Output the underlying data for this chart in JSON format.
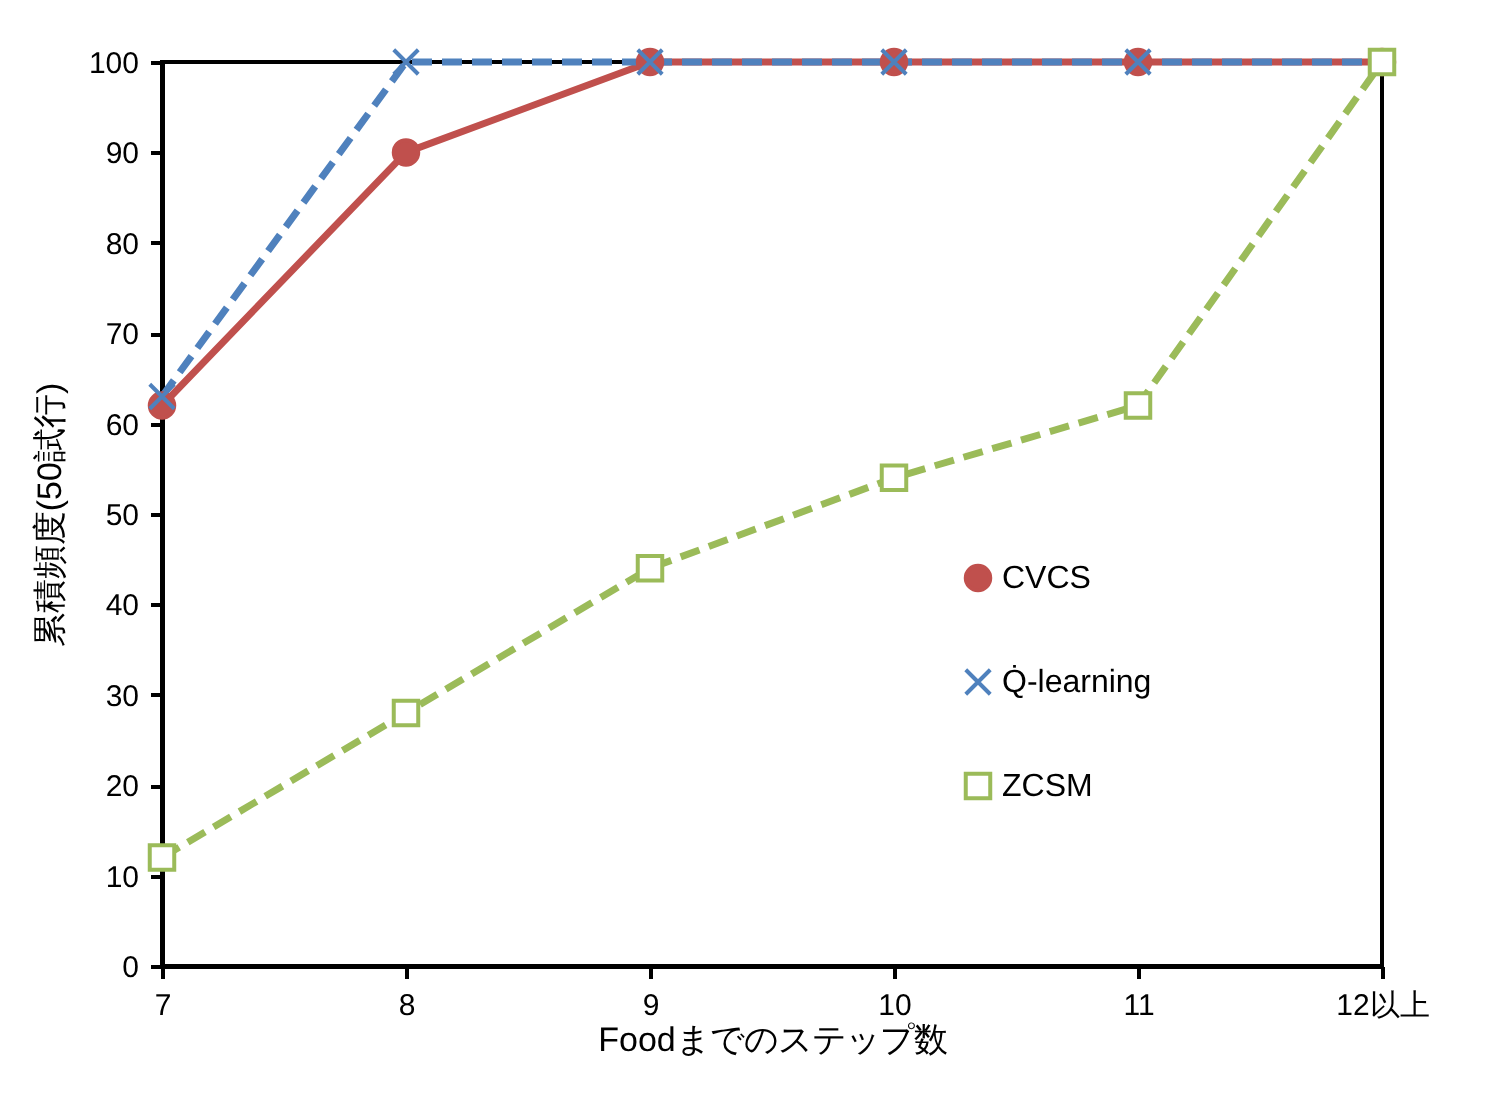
{
  "chart_data": {
    "type": "line",
    "xlabel": "Foodまでのステップ数",
    "ylabel": "累積頻度(50試行)",
    "categories": [
      "7",
      "8",
      "9",
      "10",
      "11",
      "12以上"
    ],
    "ylim": [
      0,
      100
    ],
    "yticks": [
      0,
      10,
      20,
      30,
      40,
      50,
      60,
      70,
      80,
      90,
      100
    ],
    "grid": false,
    "legend": "right",
    "series": [
      {
        "name": "CVCS",
        "color": "#c0504d",
        "marker": "circle",
        "line_style": "solid",
        "values": [
          62,
          90,
          100,
          100,
          100,
          100
        ]
      },
      {
        "name": "Q̇-learning",
        "color": "#4f81bd",
        "marker": "cross",
        "line_style": "dashed",
        "values": [
          63,
          100,
          100,
          100,
          100,
          100
        ]
      },
      {
        "name": "ZCSM",
        "color": "#9bbb59",
        "marker": "square",
        "line_style": "dashed",
        "values": [
          12,
          28,
          44,
          54,
          62,
          100
        ]
      }
    ]
  }
}
